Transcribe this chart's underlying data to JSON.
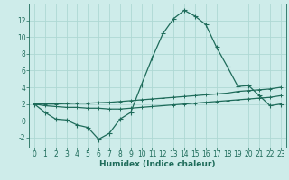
{
  "xlabel": "Humidex (Indice chaleur)",
  "background_color": "#ceecea",
  "grid_color": "#aed8d4",
  "line_color": "#1e6b5a",
  "xlim": [
    -0.5,
    23.5
  ],
  "ylim": [
    -3.2,
    14.0
  ],
  "x_ticks": [
    0,
    1,
    2,
    3,
    4,
    5,
    6,
    7,
    8,
    9,
    10,
    11,
    12,
    13,
    14,
    15,
    16,
    17,
    18,
    19,
    20,
    21,
    22,
    23
  ],
  "y_ticks": [
    -2,
    0,
    2,
    4,
    6,
    8,
    10,
    12
  ],
  "series1_x": [
    0,
    1,
    2,
    3,
    4,
    5,
    6,
    7,
    8,
    9,
    10,
    11,
    12,
    13,
    14,
    15,
    16,
    17,
    18,
    19,
    20,
    21,
    22,
    23
  ],
  "series1_y": [
    2.0,
    1.0,
    0.2,
    0.1,
    -0.5,
    -0.8,
    -2.2,
    -1.5,
    0.2,
    1.0,
    4.3,
    7.5,
    10.4,
    12.2,
    13.2,
    12.5,
    11.5,
    8.8,
    6.5,
    4.1,
    4.2,
    3.0,
    1.8,
    2.0
  ],
  "series2_x": [
    0,
    1,
    2,
    3,
    4,
    5,
    6,
    7,
    8,
    9,
    10,
    11,
    12,
    13,
    14,
    15,
    16,
    17,
    18,
    19,
    20,
    21,
    22,
    23
  ],
  "series2_y": [
    2.0,
    1.8,
    1.7,
    1.6,
    1.6,
    1.5,
    1.5,
    1.4,
    1.4,
    1.5,
    1.6,
    1.7,
    1.8,
    1.9,
    2.0,
    2.1,
    2.2,
    2.3,
    2.4,
    2.5,
    2.6,
    2.7,
    2.8,
    3.0
  ],
  "series3_x": [
    0,
    1,
    2,
    3,
    4,
    5,
    6,
    7,
    8,
    9,
    10,
    11,
    12,
    13,
    14,
    15,
    16,
    17,
    18,
    19,
    20,
    21,
    22,
    23
  ],
  "series3_y": [
    2.0,
    2.0,
    2.0,
    2.05,
    2.1,
    2.1,
    2.15,
    2.2,
    2.3,
    2.4,
    2.5,
    2.6,
    2.7,
    2.8,
    2.9,
    3.0,
    3.1,
    3.2,
    3.3,
    3.5,
    3.6,
    3.7,
    3.8,
    4.0
  ],
  "marker_size": 2.0,
  "line_width": 0.9,
  "tick_fontsize": 5.5,
  "xlabel_fontsize": 6.5
}
